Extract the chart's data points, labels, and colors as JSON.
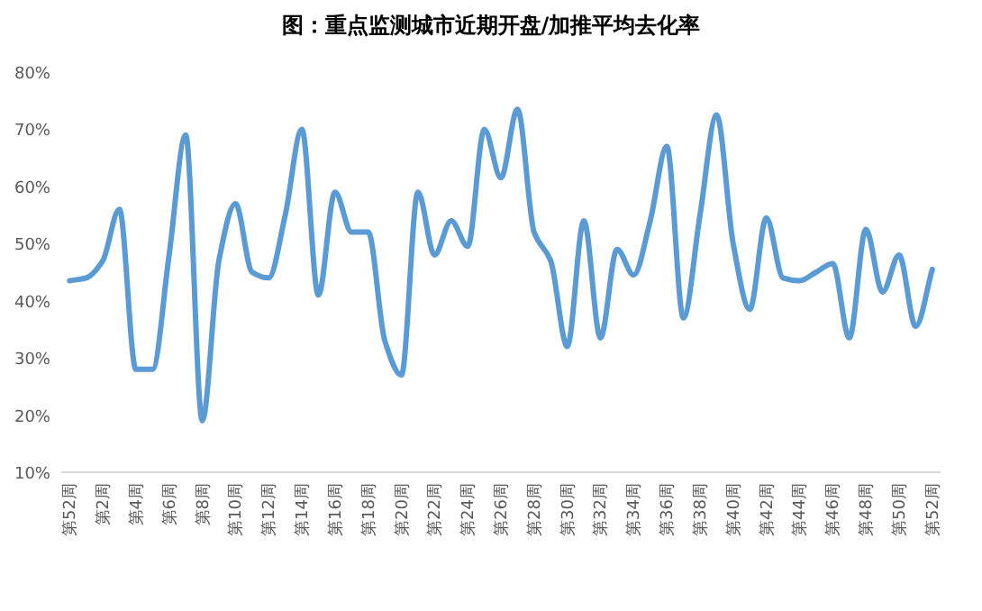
{
  "chart_data": {
    "type": "line",
    "title": "图：重点监测城市近期开盘/加推平均去化率",
    "categories": [
      "第52周",
      null,
      "第2周",
      null,
      "第4周",
      null,
      "第6周",
      null,
      "第8周",
      null,
      "第10周",
      null,
      "第12周",
      null,
      "第14周",
      null,
      "第16周",
      null,
      "第18周",
      null,
      "第20周",
      null,
      "第22周",
      null,
      "第24周",
      null,
      "第26周",
      null,
      "第28周",
      null,
      "第30周",
      null,
      "第32周",
      null,
      "第34周",
      null,
      "第36周",
      null,
      "第38周",
      null,
      "第40周",
      null,
      "第42周",
      null,
      "第44周",
      null,
      "第46周",
      null,
      "第48周",
      null,
      "第50周",
      null,
      "第52周"
    ],
    "series": [
      {
        "color": "#5b9bd5",
        "values": [
          43.5,
          44,
          47,
          56,
          28,
          28,
          48,
          69,
          19,
          47,
          57,
          45,
          44,
          55,
          70,
          41,
          59,
          52,
          52,
          33,
          27,
          59,
          48,
          54,
          49.5,
          70,
          61.5,
          73.5,
          52,
          47,
          32,
          54,
          33.5,
          49,
          44.5,
          54,
          67,
          37,
          55,
          72.5,
          50,
          38.5,
          54.5,
          44,
          43.5,
          45,
          46.5,
          33.5,
          52.5,
          41.5,
          48,
          35.5,
          45.5
        ]
      }
    ],
    "ylim": [
      10,
      80
    ],
    "yticks": [
      {
        "value": 10,
        "label": "10%"
      },
      {
        "value": 20,
        "label": "20%"
      },
      {
        "value": 30,
        "label": "30%"
      },
      {
        "value": 40,
        "label": "40%"
      },
      {
        "value": 50,
        "label": "50%"
      },
      {
        "value": 60,
        "label": "60%"
      },
      {
        "value": 70,
        "label": "70%"
      },
      {
        "value": 80,
        "label": "80%"
      }
    ],
    "grid": false,
    "marker": "none",
    "line_style": "solid"
  }
}
